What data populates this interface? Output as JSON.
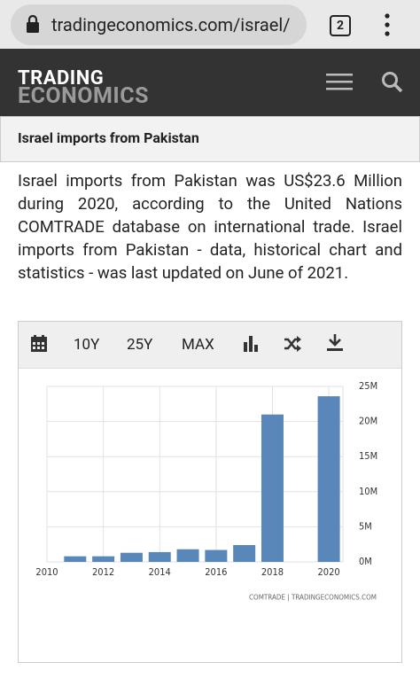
{
  "browser": {
    "url": "tradingeconomics.com/israel/",
    "tab_count": "2"
  },
  "header": {
    "logo_top": "TRADING",
    "logo_bottom": "ECONOMICS"
  },
  "page_title": "Israel imports from Pakistan",
  "description": "Israel imports from Pakistan was US$23.6 Million during 2020, according to the United Nations COMTRADE database on international trade. Israel imports from Pakistan - data, historical chart and statistics - was last updated on June of 2021.",
  "toolbar": [
    "10Y",
    "25Y",
    "MAX"
  ],
  "chart_data": {
    "type": "bar",
    "x": [
      2011,
      2012,
      2013,
      2014,
      2015,
      2016,
      2017,
      2018,
      2019,
      2020
    ],
    "values": [
      0.8,
      0.8,
      1.3,
      1.4,
      1.8,
      1.7,
      2.4,
      21,
      null,
      23.6
    ],
    "color": "#5a87b9",
    "xlim": [
      2010,
      2020.5
    ],
    "xticks": [
      2010,
      2012,
      2014,
      2016,
      2018,
      2020
    ],
    "ylim": [
      0,
      25
    ],
    "yticks": [
      {
        "value": 0,
        "label": "0M"
      },
      {
        "value": 5,
        "label": "5M"
      },
      {
        "value": 10,
        "label": "10M"
      },
      {
        "value": 15,
        "label": "15M"
      },
      {
        "value": 20,
        "label": "20M"
      },
      {
        "value": 25,
        "label": "25M"
      }
    ],
    "grid": true,
    "source": "COMTRADE | TRADINGECONOMICS.COM"
  }
}
